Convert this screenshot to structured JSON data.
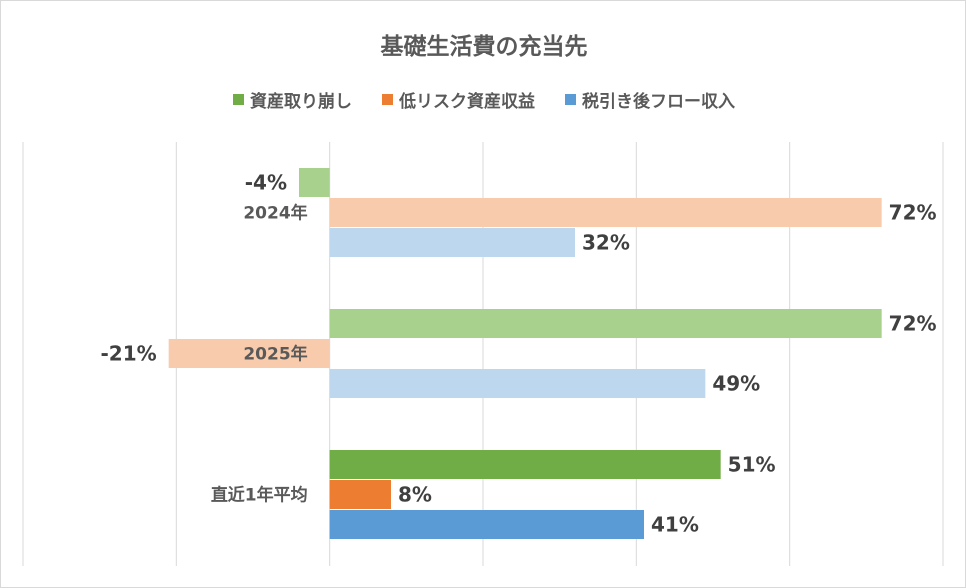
{
  "chart_data": {
    "type": "bar",
    "orientation": "horizontal",
    "title": "基礎生活費の充当先",
    "categories": [
      "2024年",
      "2025年",
      "直近1年平均"
    ],
    "series": [
      {
        "name": "資産取り崩し",
        "values": [
          -4,
          72,
          51
        ],
        "color": "#70ad47",
        "faded_color": "#a9d18e"
      },
      {
        "name": "低リスク資産収益",
        "values": [
          72,
          -21,
          8
        ],
        "color": "#ed7d31",
        "faded_color": "#f8cbad"
      },
      {
        "name": "税引き後フロー収入",
        "values": [
          32,
          49,
          41
        ],
        "color": "#5b9bd5",
        "faded_color": "#bdd7ee"
      }
    ],
    "highlighted_category": "直近1年平均",
    "value_labels": [
      [
        "-4%",
        "72%",
        "32%"
      ],
      [
        "72%",
        "-21%",
        "49%"
      ],
      [
        "51%",
        "8%",
        "41%"
      ]
    ],
    "xlim": [
      -40,
      80
    ],
    "grid": true,
    "legend_position": "top"
  }
}
